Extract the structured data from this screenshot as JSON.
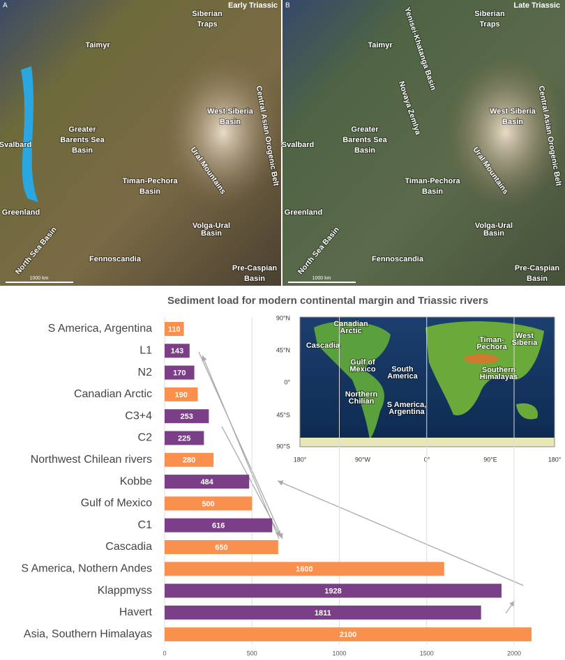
{
  "maps": [
    {
      "letter": "A",
      "title": "Early Triassic",
      "scale": "1000 km",
      "labels": [
        {
          "lines": [
            "Siberian",
            "Traps"
          ]
        },
        {
          "lines": [
            "Taimyr"
          ]
        },
        {
          "lines": [
            "Central Asian Orogenic Belt"
          ]
        },
        {
          "lines": [
            "West Siberia",
            "Basin"
          ]
        },
        {
          "lines": [
            "Greater",
            "Barents Sea",
            "Basin"
          ]
        },
        {
          "lines": [
            "Svalbard"
          ]
        },
        {
          "lines": [
            "Ural Mountains"
          ]
        },
        {
          "lines": [
            "Timan-Pechora",
            "Basin"
          ]
        },
        {
          "lines": [
            "Greenland"
          ]
        },
        {
          "lines": [
            "Volga-Ural",
            "Basin"
          ]
        },
        {
          "lines": [
            "North Sea Basin"
          ]
        },
        {
          "lines": [
            "Fennoscandia"
          ]
        },
        {
          "lines": [
            "Pre-Caspian",
            "Basin"
          ]
        }
      ]
    },
    {
      "letter": "B",
      "title": "Late Triassic",
      "scale": "1000 km",
      "labels": [
        {
          "lines": [
            "Siberian",
            "Traps"
          ]
        },
        {
          "lines": [
            "Taimyr"
          ]
        },
        {
          "lines": [
            "Central Asian Orogenic Belt"
          ]
        },
        {
          "lines": [
            "West Siberia",
            "Basin"
          ]
        },
        {
          "lines": [
            "Greater",
            "Barents Sea",
            "Basin"
          ]
        },
        {
          "lines": [
            "Svalbard"
          ]
        },
        {
          "lines": [
            "Ural Mountains"
          ]
        },
        {
          "lines": [
            "Timan-Pechora",
            "Basin"
          ]
        },
        {
          "lines": [
            "Greenland"
          ]
        },
        {
          "lines": [
            "Volga-Ural",
            "Basin"
          ]
        },
        {
          "lines": [
            "North Sea Basin"
          ]
        },
        {
          "lines": [
            "Fennoscandia"
          ]
        },
        {
          "lines": [
            "Pre-Caspian",
            "Basin"
          ]
        },
        {
          "lines": [
            "Yenisei-Khatanga Basin"
          ]
        },
        {
          "lines": [
            "Novaya Zemlya"
          ]
        }
      ]
    }
  ],
  "inset": {
    "lat_ticks": [
      "90°N",
      "45°N",
      "0°",
      "45°S",
      "90°S"
    ],
    "lon_ticks": [
      "180°",
      "90°W",
      "0°",
      "90°E",
      "180°"
    ],
    "labels": [
      {
        "lines": [
          "Canadian",
          "Arctic"
        ]
      },
      {
        "lines": [
          "Cascadia"
        ]
      },
      {
        "lines": [
          "Gulf of",
          "Mexico"
        ]
      },
      {
        "lines": [
          "South",
          "America"
        ]
      },
      {
        "lines": [
          "Northern",
          "Chilian"
        ]
      },
      {
        "lines": [
          "S America,",
          "Argentina"
        ]
      },
      {
        "lines": [
          "Timan-",
          "Pechora"
        ]
      },
      {
        "lines": [
          "West",
          "Siberia"
        ]
      },
      {
        "lines": [
          "Southern",
          "Himalayas"
        ]
      }
    ]
  },
  "chart_data": {
    "type": "barh",
    "title": "Sediment load for modern continental margin and Triassic rivers",
    "categories": [
      "S America, Argentina",
      "L1",
      "N2",
      "Canadian Arctic",
      "C3+4",
      "C2",
      "Northwest Chilean rivers",
      "Kobbe",
      "Gulf of Mexico",
      "C1",
      "Cascadia",
      "S America, Nothern Andes",
      "Klappmyss",
      "Havert",
      "Asia, Southern Himalayas"
    ],
    "values": [
      110,
      143,
      170,
      190,
      253,
      225,
      280,
      484,
      500,
      616,
      650,
      1600,
      1928,
      1811,
      2100
    ],
    "colors": [
      "#f9904d",
      "#7b3f88",
      "#7b3f88",
      "#f9904d",
      "#7b3f88",
      "#7b3f88",
      "#f9904d",
      "#7b3f88",
      "#f9904d",
      "#7b3f88",
      "#f9904d",
      "#f9904d",
      "#7b3f88",
      "#7b3f88",
      "#f9904d"
    ],
    "xlim": [
      0,
      2100
    ],
    "xticks": [
      0,
      500,
      1000,
      1500,
      2000
    ],
    "grid": true
  }
}
